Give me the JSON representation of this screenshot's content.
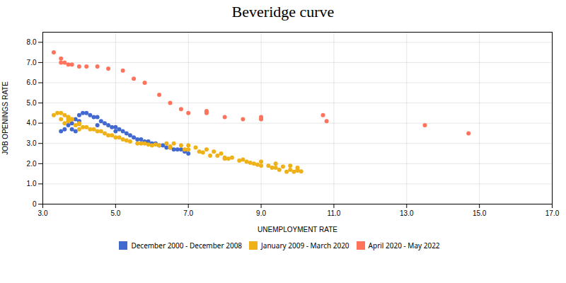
{
  "chart_data": {
    "type": "scatter",
    "title": "Beveridge curve",
    "x_label": "UNEMPLOYMENT RATE",
    "y_label": "JOB OPENINGS RATE",
    "xlim": [
      3.0,
      17.0
    ],
    "ylim": [
      0,
      8.5
    ],
    "xticks": [
      {
        "value": 3.0,
        "label": "3.0"
      },
      {
        "value": 5.0,
        "label": "5.0"
      },
      {
        "value": 7.0,
        "label": "7.0"
      },
      {
        "value": 9.0,
        "label": "9.0"
      },
      {
        "value": 11.0,
        "label": "11.0"
      },
      {
        "value": 13.0,
        "label": "13.0"
      },
      {
        "value": 15.0,
        "label": "15.0"
      },
      {
        "value": 17.0,
        "label": "17.0"
      }
    ],
    "yticks": [
      0,
      {
        "value": 1.0,
        "label": "1.0"
      },
      {
        "value": 2.0,
        "label": "2.0"
      },
      {
        "value": 3.0,
        "label": "3.0"
      },
      {
        "value": 4.0,
        "label": "4.0"
      },
      {
        "value": 5.0,
        "label": "5.0"
      },
      {
        "value": 6.0,
        "label": "6.0"
      },
      {
        "value": 7.0,
        "label": "7.0"
      },
      {
        "value": 8.0,
        "label": "8.0"
      }
    ],
    "grid": true,
    "legend": "bottom",
    "series": [
      {
        "name": "December 2000 - December 2008",
        "values": [
          [
            3.9,
            3.6
          ],
          [
            3.8,
            3.7
          ],
          [
            3.7,
            3.9
          ],
          [
            3.8,
            4.0
          ],
          [
            3.9,
            4.2
          ],
          [
            4.0,
            4.4
          ],
          [
            4.1,
            4.5
          ],
          [
            4.2,
            4.5
          ],
          [
            4.3,
            4.4
          ],
          [
            4.4,
            4.3
          ],
          [
            4.5,
            4.3
          ],
          [
            4.6,
            4.1
          ],
          [
            4.7,
            4.0
          ],
          [
            4.8,
            3.9
          ],
          [
            4.9,
            3.8
          ],
          [
            5.0,
            3.8
          ],
          [
            5.1,
            3.7
          ],
          [
            5.2,
            3.6
          ],
          [
            5.3,
            3.5
          ],
          [
            5.4,
            3.4
          ],
          [
            5.5,
            3.3
          ],
          [
            5.6,
            3.2
          ],
          [
            5.7,
            3.2
          ],
          [
            5.8,
            3.1
          ],
          [
            5.9,
            3.1
          ],
          [
            6.0,
            3.0
          ],
          [
            6.1,
            3.0
          ],
          [
            6.2,
            2.9
          ],
          [
            6.3,
            2.9
          ],
          [
            6.4,
            2.8
          ],
          [
            6.5,
            2.8
          ],
          [
            6.6,
            2.7
          ],
          [
            6.7,
            2.7
          ],
          [
            6.8,
            2.7
          ],
          [
            6.9,
            2.6
          ],
          [
            7.0,
            2.5
          ],
          [
            3.5,
            3.6
          ],
          [
            3.6,
            3.7
          ],
          [
            4.0,
            4.1
          ],
          [
            4.5,
            3.9
          ],
          [
            5.0,
            3.6
          ]
        ]
      },
      {
        "name": "January 2009 - March 2020",
        "values": [
          [
            7.6,
            2.4
          ],
          [
            8.0,
            2.3
          ],
          [
            8.5,
            2.2
          ],
          [
            9.0,
            2.1
          ],
          [
            9.4,
            2.0
          ],
          [
            9.8,
            1.9
          ],
          [
            10.0,
            1.8
          ],
          [
            10.0,
            1.7
          ],
          [
            9.9,
            1.6
          ],
          [
            9.7,
            1.6
          ],
          [
            9.5,
            1.7
          ],
          [
            9.4,
            1.8
          ],
          [
            9.0,
            1.9
          ],
          [
            8.8,
            2.0
          ],
          [
            8.6,
            2.1
          ],
          [
            8.2,
            2.3
          ],
          [
            7.9,
            2.5
          ],
          [
            7.7,
            2.6
          ],
          [
            7.5,
            2.7
          ],
          [
            7.2,
            2.8
          ],
          [
            7.0,
            2.9
          ],
          [
            6.8,
            2.9
          ],
          [
            6.6,
            3.0
          ],
          [
            6.4,
            3.0
          ],
          [
            6.2,
            2.9
          ],
          [
            6.0,
            2.9
          ],
          [
            5.8,
            3.0
          ],
          [
            5.6,
            3.0
          ],
          [
            5.4,
            3.1
          ],
          [
            5.2,
            3.2
          ],
          [
            5.0,
            3.3
          ],
          [
            4.9,
            3.4
          ],
          [
            4.7,
            3.5
          ],
          [
            4.5,
            3.6
          ],
          [
            4.3,
            3.7
          ],
          [
            4.1,
            3.8
          ],
          [
            3.9,
            3.9
          ],
          [
            3.7,
            4.1
          ],
          [
            3.5,
            4.2
          ],
          [
            3.3,
            4.4
          ],
          [
            3.6,
            4.0
          ],
          [
            4.0,
            3.7
          ],
          [
            6.5,
            2.8
          ],
          [
            7.8,
            2.4
          ],
          [
            8.9,
            1.95
          ],
          [
            9.6,
            1.85
          ],
          [
            8.4,
            2.15
          ],
          [
            6.9,
            2.7
          ],
          [
            5.7,
            3.0
          ],
          [
            4.6,
            3.6
          ],
          [
            4.0,
            4.0
          ],
          [
            3.8,
            4.2
          ],
          [
            3.7,
            4.3
          ],
          [
            3.6,
            4.4
          ],
          [
            3.5,
            4.5
          ],
          [
            3.4,
            4.5
          ],
          [
            3.7,
            4.2
          ],
          [
            4.2,
            3.8
          ],
          [
            5.1,
            3.3
          ],
          [
            6.1,
            2.95
          ],
          [
            7.3,
            2.6
          ],
          [
            8.1,
            2.25
          ],
          [
            9.2,
            1.9
          ],
          [
            10.0,
            1.65
          ],
          [
            10.1,
            1.62
          ],
          [
            9.8,
            1.7
          ],
          [
            9.3,
            1.8
          ],
          [
            8.7,
            2.05
          ],
          [
            8.0,
            2.25
          ],
          [
            7.4,
            2.55
          ],
          [
            7.0,
            2.7
          ],
          [
            6.5,
            2.85
          ],
          [
            5.9,
            2.95
          ],
          [
            5.3,
            3.15
          ],
          [
            4.8,
            3.4
          ],
          [
            4.4,
            3.7
          ],
          [
            4.0,
            3.95
          ],
          [
            3.8,
            4.2
          ],
          [
            3.7,
            4.3
          ]
        ]
      },
      {
        "name": "April 2020 - May 2022",
        "values": [
          [
            3.5,
            7.2
          ],
          [
            3.5,
            7.0
          ],
          [
            3.6,
            7.0
          ],
          [
            3.7,
            6.9
          ],
          [
            3.8,
            6.9
          ],
          [
            4.0,
            6.8
          ],
          [
            4.2,
            6.8
          ],
          [
            4.5,
            6.8
          ],
          [
            4.8,
            6.7
          ],
          [
            5.2,
            6.6
          ],
          [
            5.5,
            6.2
          ],
          [
            5.8,
            6.0
          ],
          [
            6.2,
            5.4
          ],
          [
            6.5,
            5.0
          ],
          [
            6.8,
            4.7
          ],
          [
            7.0,
            4.5
          ],
          [
            7.5,
            4.5
          ],
          [
            7.5,
            4.6
          ],
          [
            8.0,
            4.3
          ],
          [
            8.5,
            4.2
          ],
          [
            9.0,
            4.2
          ],
          [
            9.0,
            4.3
          ],
          [
            10.7,
            4.4
          ],
          [
            10.8,
            4.1
          ],
          [
            13.5,
            3.9
          ],
          [
            14.7,
            3.5
          ],
          [
            3.3,
            7.5
          ]
        ]
      }
    ]
  }
}
